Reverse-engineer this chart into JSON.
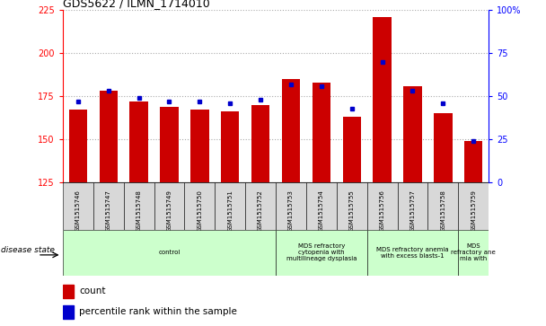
{
  "title": "GDS5622 / ILMN_1714010",
  "samples": [
    "GSM1515746",
    "GSM1515747",
    "GSM1515748",
    "GSM1515749",
    "GSM1515750",
    "GSM1515751",
    "GSM1515752",
    "GSM1515753",
    "GSM1515754",
    "GSM1515755",
    "GSM1515756",
    "GSM1515757",
    "GSM1515758",
    "GSM1515759"
  ],
  "counts": [
    167,
    178,
    172,
    169,
    167,
    166,
    170,
    185,
    183,
    163,
    221,
    181,
    165,
    149
  ],
  "percentile_ranks": [
    47,
    53,
    49,
    47,
    47,
    46,
    48,
    57,
    56,
    43,
    70,
    53,
    46,
    24
  ],
  "ylim_left": [
    125,
    225
  ],
  "ylim_right": [
    0,
    100
  ],
  "yticks_left": [
    125,
    150,
    175,
    200,
    225
  ],
  "yticks_right": [
    0,
    25,
    50,
    75,
    100
  ],
  "bar_color": "#cc0000",
  "marker_color": "#0000cc",
  "grid_color": "#aaaaaa",
  "bg_color": "#ffffff",
  "light_green": "#ccffcc",
  "gray_box": "#d8d8d8",
  "groups": [
    {
      "label": "control",
      "start": 0,
      "end": 6
    },
    {
      "label": "MDS refractory\ncytopenia with\nmultilineage dysplasia",
      "start": 7,
      "end": 9
    },
    {
      "label": "MDS refractory anemia\nwith excess blasts-1",
      "start": 10,
      "end": 12
    },
    {
      "label": "MDS\nrefractory ane\nmia with",
      "start": 13,
      "end": 13
    }
  ],
  "legend_count_label": "count",
  "legend_pct_label": "percentile rank within the sample",
  "disease_state_label": "disease state"
}
